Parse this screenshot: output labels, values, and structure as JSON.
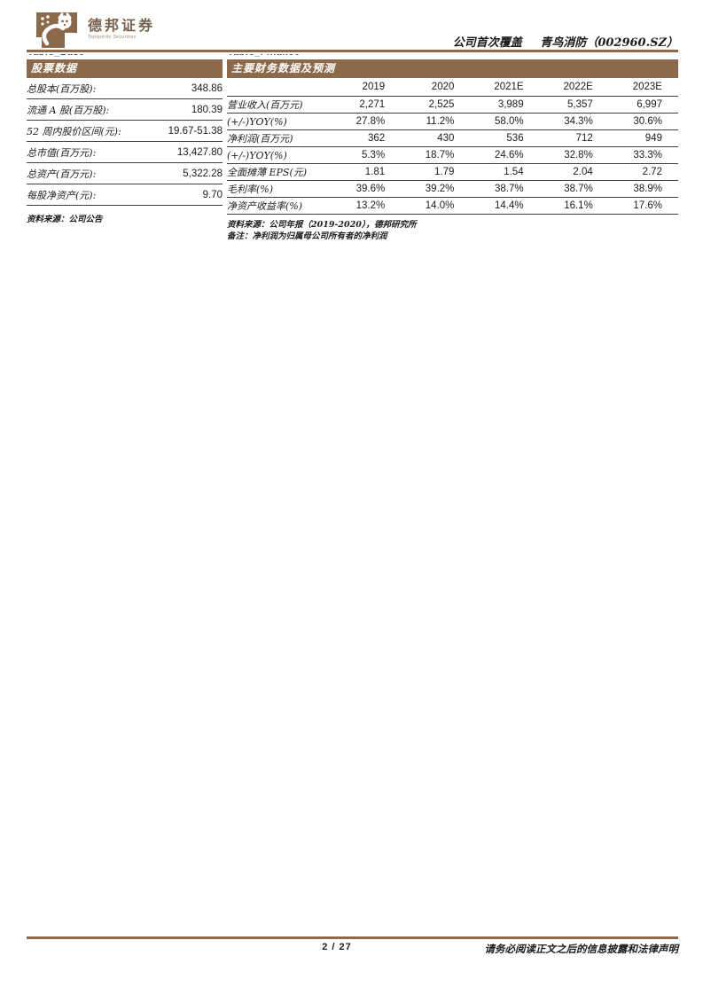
{
  "colors": {
    "brand_brown": "#8c694b",
    "rule_brown": "#8c694b",
    "line_dark": "#3f3f3f"
  },
  "header": {
    "brand_cn": "德邦证券",
    "brand_en": "Topsperity Securities",
    "report_type": "公司首次覆盖",
    "company_title": "青鸟消防（002960.SZ）",
    "clipped_tag_left": "Table_Base",
    "clipped_tag_right": "Table_Finance"
  },
  "stock_panel": {
    "title": "股票数据",
    "rows": [
      {
        "label": "总股本(百万股):",
        "value": "348.86"
      },
      {
        "label": "流通 A 股(百万股):",
        "value": "180.39"
      },
      {
        "label": "52 周内股价区间(元):",
        "value": "19.67-51.38"
      },
      {
        "label": "总市值(百万元):",
        "value": "13,427.80"
      },
      {
        "label": "总资产(百万元):",
        "value": "5,322.28"
      },
      {
        "label": "每股净资产(元):",
        "value": "9.70"
      }
    ],
    "source": "资料来源：公司公告"
  },
  "finance_panel": {
    "title": "主要财务数据及预测",
    "columns": [
      "2019",
      "2020",
      "2021E",
      "2022E",
      "2023E"
    ],
    "rows": [
      {
        "label": "营业收入(百万元)",
        "values": [
          "2,271",
          "2,525",
          "3,989",
          "5,357",
          "6,997"
        ]
      },
      {
        "label": "(+/-)YOY(%)",
        "values": [
          "27.8%",
          "11.2%",
          "58.0%",
          "34.3%",
          "30.6%"
        ]
      },
      {
        "label": "净利润(百万元)",
        "values": [
          "362",
          "430",
          "536",
          "712",
          "949"
        ]
      },
      {
        "label": "(+/-)YOY(%)",
        "values": [
          "5.3%",
          "18.7%",
          "24.6%",
          "32.8%",
          "33.3%"
        ]
      },
      {
        "label": "全面摊薄 EPS(元)",
        "values": [
          "1.81",
          "1.79",
          "1.54",
          "2.04",
          "2.72"
        ]
      },
      {
        "label": "毛利率(%)",
        "values": [
          "39.6%",
          "39.2%",
          "38.7%",
          "38.7%",
          "38.9%"
        ]
      },
      {
        "label": "净资产收益率(%)",
        "values": [
          "13.2%",
          "14.0%",
          "14.4%",
          "16.1%",
          "17.6%"
        ]
      }
    ],
    "source": "资料来源：公司年报（2019-2020），德邦研究所",
    "note": "备注：净利润为归属母公司所有者的净利润"
  },
  "footer": {
    "page": "2 / 27",
    "disclaimer": "请务必阅读正文之后的信息披露和法律声明"
  }
}
